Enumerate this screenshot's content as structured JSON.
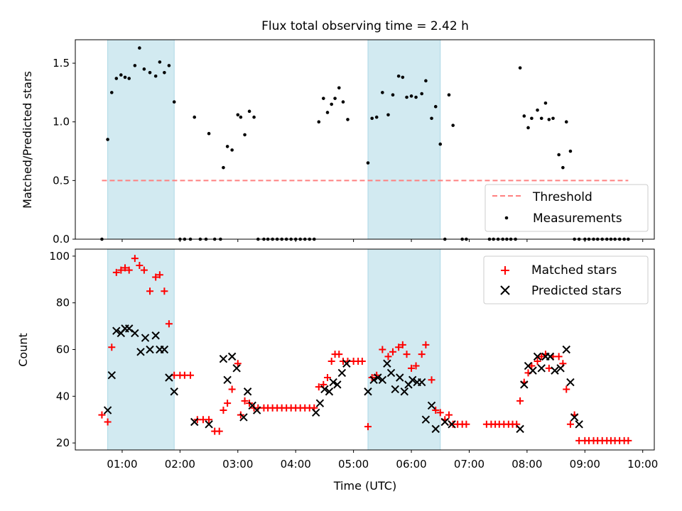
{
  "chart_data": {
    "type": "scatter",
    "title": "Flux total observing time = 2.42 h",
    "xlabel": "Time (UTC)",
    "x_unit": "UTC hours",
    "x_ticks": [
      {
        "value": 1,
        "label": "01:00"
      },
      {
        "value": 2,
        "label": "02:00"
      },
      {
        "value": 3,
        "label": "03:00"
      },
      {
        "value": 4,
        "label": "04:00"
      },
      {
        "value": 5,
        "label": "05:00"
      },
      {
        "value": 6,
        "label": "06:00"
      },
      {
        "value": 7,
        "label": "07:00"
      },
      {
        "value": 8,
        "label": "08:00"
      },
      {
        "value": 9,
        "label": "09:00"
      },
      {
        "value": 10,
        "label": "10:00"
      }
    ],
    "xlim": [
      0.19,
      10.2
    ],
    "shaded_intervals": [
      [
        0.75,
        1.9
      ],
      [
        5.25,
        6.5
      ]
    ],
    "shade_color": "#add8e6",
    "panels": [
      {
        "ylabel": "Matched/Predicted stars",
        "ylim": [
          0,
          1.7
        ],
        "yticks": [
          0,
          0.5,
          1.0,
          1.5
        ],
        "ytick_labels": [
          "0.0",
          "0.5",
          "1.0",
          "1.5"
        ],
        "legend_position": "lower right",
        "threshold": {
          "name": "Threshold",
          "value": 0.5,
          "x_range": [
            0.65,
            9.75
          ],
          "color": "#ff8080",
          "style": "dashed"
        },
        "series": [
          {
            "name": "Measurements",
            "marker": "dot",
            "color": "#000000",
            "x": [
              0.65,
              0.75,
              0.82,
              0.9,
              0.98,
              1.05,
              1.12,
              1.22,
              1.3,
              1.38,
              1.48,
              1.58,
              1.65,
              1.73,
              1.81,
              1.9,
              2.0,
              2.08,
              2.18,
              2.25,
              2.35,
              2.45,
              2.5,
              2.6,
              2.7,
              2.75,
              2.82,
              2.9,
              3.0,
              3.05,
              3.12,
              3.2,
              3.28,
              3.35,
              3.45,
              3.52,
              3.6,
              3.68,
              3.76,
              3.84,
              3.92,
              4.0,
              4.08,
              4.16,
              4.24,
              4.32,
              4.4,
              4.48,
              4.55,
              4.62,
              4.68,
              4.75,
              4.82,
              4.9,
              5.25,
              5.32,
              5.4,
              5.5,
              5.6,
              5.68,
              5.78,
              5.85,
              5.92,
              6.0,
              6.08,
              6.18,
              6.25,
              6.35,
              6.42,
              6.5,
              6.58,
              6.65,
              6.72,
              6.88,
              6.95,
              7.35,
              7.42,
              7.5,
              7.58,
              7.65,
              7.72,
              7.8,
              7.88,
              7.95,
              8.02,
              8.08,
              8.18,
              8.25,
              8.32,
              8.38,
              8.45,
              8.55,
              8.62,
              8.68,
              8.75,
              8.82,
              8.9,
              9.0,
              9.07,
              9.15,
              9.22,
              9.3,
              9.38,
              9.45,
              9.52,
              9.6,
              9.68,
              9.75
            ],
            "y": [
              0,
              0.85,
              1.25,
              1.37,
              1.4,
              1.38,
              1.37,
              1.48,
              1.63,
              1.45,
              1.42,
              1.39,
              1.51,
              1.42,
              1.48,
              1.17,
              0,
              0,
              0,
              1.04,
              0,
              0,
              0.9,
              0,
              0,
              0.61,
              0.79,
              0.76,
              1.06,
              1.04,
              0.89,
              1.09,
              1.04,
              0,
              0,
              0,
              0,
              0,
              0,
              0,
              0,
              0,
              0,
              0,
              0,
              0,
              1.0,
              1.2,
              1.08,
              1.15,
              1.2,
              1.29,
              1.17,
              1.02,
              0.65,
              1.03,
              1.04,
              1.25,
              1.06,
              1.23,
              1.39,
              1.38,
              1.21,
              1.22,
              1.21,
              1.24,
              1.35,
              1.03,
              1.13,
              0.81,
              0,
              1.23,
              0.97,
              0,
              0,
              0,
              0,
              0,
              0,
              0,
              0,
              0,
              1.46,
              1.05,
              0.95,
              1.03,
              1.1,
              1.03,
              1.16,
              1.02,
              1.03,
              0.72,
              0.61,
              1.0,
              0.75,
              0,
              0,
              0,
              0,
              0,
              0,
              0,
              0,
              0,
              0,
              0,
              0,
              0
            ]
          }
        ]
      },
      {
        "ylabel": "Count",
        "ylim": [
          17,
          103
        ],
        "yticks": [
          20,
          40,
          60,
          80,
          100
        ],
        "ytick_labels": [
          "20",
          "40",
          "60",
          "80",
          "100"
        ],
        "legend_position": "upper right",
        "series": [
          {
            "name": "Matched stars",
            "marker": "plus",
            "color": "#ff0000",
            "x": [
              0.65,
              0.75,
              0.82,
              0.9,
              0.98,
              1.05,
              1.12,
              1.22,
              1.3,
              1.38,
              1.48,
              1.58,
              1.65,
              1.73,
              1.81,
              1.9,
              2.0,
              2.08,
              2.18,
              2.3,
              2.4,
              2.5,
              2.6,
              2.68,
              2.75,
              2.82,
              2.9,
              3.0,
              3.05,
              3.12,
              3.2,
              3.28,
              3.35,
              3.45,
              3.52,
              3.6,
              3.68,
              3.76,
              3.84,
              3.92,
              4.0,
              4.08,
              4.16,
              4.24,
              4.32,
              4.4,
              4.48,
              4.55,
              4.62,
              4.68,
              4.75,
              4.82,
              4.9,
              5.0,
              5.08,
              5.15,
              5.25,
              5.32,
              5.4,
              5.5,
              5.6,
              5.68,
              5.78,
              5.85,
              5.92,
              6.0,
              6.08,
              6.18,
              6.25,
              6.35,
              6.42,
              6.5,
              6.58,
              6.65,
              6.72,
              6.8,
              6.88,
              6.95,
              7.3,
              7.38,
              7.45,
              7.52,
              7.6,
              7.68,
              7.75,
              7.82,
              7.88,
              7.95,
              8.02,
              8.08,
              8.18,
              8.25,
              8.32,
              8.38,
              8.45,
              8.55,
              8.62,
              8.68,
              8.75,
              8.82,
              8.9,
              9.0,
              9.07,
              9.15,
              9.22,
              9.3,
              9.38,
              9.45,
              9.52,
              9.6,
              9.68,
              9.75
            ],
            "y": [
              32,
              29,
              61,
              93,
              94,
              95,
              94,
              99,
              96,
              94,
              85,
              91,
              92,
              85,
              71,
              49,
              49,
              49,
              49,
              30,
              30,
              30,
              25,
              25,
              34,
              37,
              43,
              54,
              32,
              38,
              37,
              35,
              35,
              35,
              35,
              35,
              35,
              35,
              35,
              35,
              35,
              35,
              35,
              35,
              35,
              44,
              45,
              48,
              55,
              58,
              58,
              55,
              55,
              55,
              55,
              55,
              27,
              48,
              49,
              60,
              57,
              59,
              61,
              62,
              58,
              52,
              53,
              58,
              62,
              47,
              34,
              33,
              30,
              32,
              28,
              28,
              28,
              28,
              28,
              28,
              28,
              28,
              28,
              28,
              28,
              28,
              38,
              46,
              50,
              53,
              55,
              57,
              58,
              52,
              57,
              57,
              54,
              43,
              28,
              32,
              21,
              21,
              21,
              21,
              21,
              21,
              21,
              21,
              21,
              21,
              21,
              21
            ]
          },
          {
            "name": "Predicted stars",
            "marker": "x",
            "color": "#000000",
            "x": [
              0.75,
              0.82,
              0.9,
              0.98,
              1.05,
              1.12,
              1.22,
              1.32,
              1.4,
              1.48,
              1.58,
              1.65,
              1.73,
              1.81,
              1.9,
              2.25,
              2.5,
              2.75,
              2.82,
              2.9,
              2.98,
              3.1,
              3.17,
              3.25,
              3.33,
              4.35,
              4.42,
              4.5,
              4.58,
              4.65,
              4.72,
              4.8,
              4.88,
              5.25,
              5.35,
              5.42,
              5.5,
              5.58,
              5.65,
              5.72,
              5.8,
              5.88,
              5.95,
              6.02,
              6.1,
              6.18,
              6.25,
              6.35,
              6.42,
              6.58,
              6.7,
              7.88,
              7.95,
              8.02,
              8.1,
              8.18,
              8.25,
              8.32,
              8.4,
              8.48,
              8.58,
              8.68,
              8.75,
              8.82,
              8.9
            ],
            "y": [
              34,
              49,
              68,
              67,
              69,
              69,
              67,
              59,
              65,
              60,
              66,
              60,
              60,
              48,
              42,
              29,
              28,
              56,
              47,
              57,
              52,
              31,
              42,
              36,
              34,
              33,
              37,
              43,
              42,
              46,
              45,
              50,
              54,
              42,
              47,
              48,
              47,
              54,
              50,
              43,
              48,
              42,
              45,
              47,
              46,
              46,
              30,
              36,
              26,
              29,
              28,
              26,
              45,
              53,
              51,
              57,
              52,
              57,
              57,
              51,
              52,
              60,
              46,
              31,
              28
            ]
          }
        ]
      }
    ]
  }
}
